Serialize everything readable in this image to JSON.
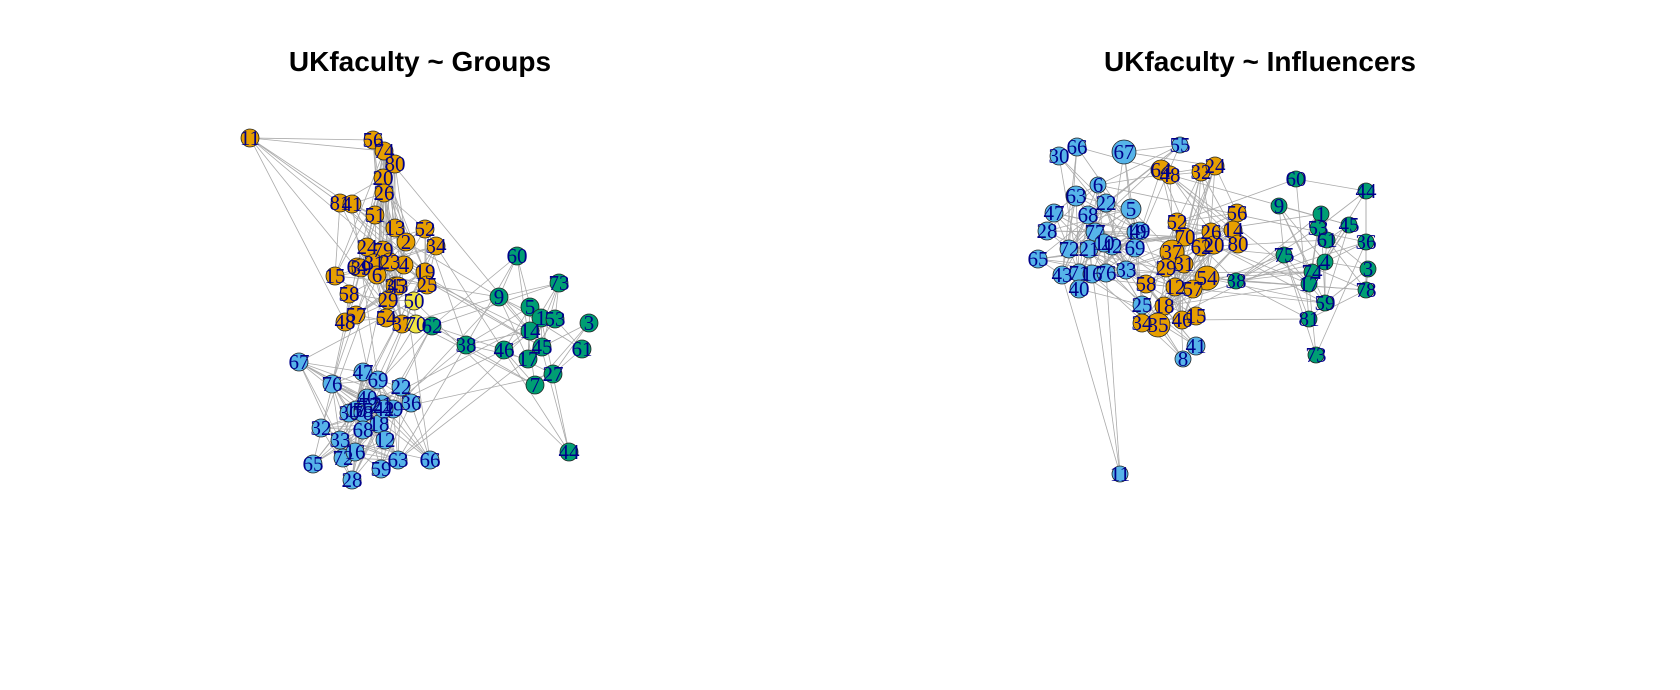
{
  "figure": {
    "panels": [
      {
        "title": "UKfaculty ~ Groups"
      },
      {
        "title": "UKfaculty ~ Influencers"
      }
    ]
  },
  "colors": {
    "group1": "#e69f00",
    "group2": "#56b4e9",
    "group3": "#009e73",
    "group4": "#f0e442",
    "edge": "#aaaaaa",
    "node_border": "#222222",
    "label": "#00008b",
    "background": "#ffffff"
  },
  "chart_data": [
    {
      "type": "network",
      "title": "UKfaculty ~ Groups",
      "node_labels": [
        "11",
        "56",
        "74",
        "80",
        "20",
        "26",
        "81",
        "41",
        "51",
        "13",
        "52",
        "2",
        "34",
        "24",
        "79",
        "31",
        "4",
        "23",
        "64",
        "39",
        "19",
        "15",
        "6",
        "25",
        "58",
        "35",
        "29",
        "50",
        "43",
        "48",
        "57",
        "54",
        "37",
        "70",
        "62",
        "60",
        "9",
        "73",
        "5",
        "1",
        "53",
        "3",
        "14",
        "61",
        "45",
        "38",
        "46",
        "17",
        "27",
        "7",
        "67",
        "76",
        "69",
        "22",
        "36",
        "47",
        "30",
        "44",
        "21",
        "77",
        "65",
        "72",
        "10",
        "55",
        "18",
        "12",
        "63",
        "16",
        "33",
        "32",
        "78",
        "66",
        "49",
        "42",
        "40",
        "28",
        "59",
        "68"
      ]
    },
    {
      "type": "network",
      "title": "UKfaculty ~ Influencers",
      "node_labels": [
        "55",
        "66",
        "30",
        "67",
        "64",
        "48",
        "32",
        "24",
        "60",
        "6",
        "44",
        "63",
        "22",
        "5",
        "47",
        "68",
        "52",
        "56",
        "9",
        "1",
        "53",
        "45",
        "28",
        "77",
        "19",
        "49",
        "70",
        "26",
        "14",
        "61",
        "36",
        "72",
        "21",
        "42",
        "10",
        "69",
        "62",
        "20",
        "80",
        "65",
        "37",
        "75",
        "3",
        "31",
        "29",
        "43",
        "71",
        "16",
        "76",
        "33",
        "54",
        "38",
        "74",
        "4",
        "40",
        "17",
        "78",
        "58",
        "12",
        "57",
        "25",
        "18",
        "59",
        "81",
        "46",
        "35",
        "15",
        "34",
        "41",
        "8",
        "73",
        "11"
      ]
    }
  ]
}
